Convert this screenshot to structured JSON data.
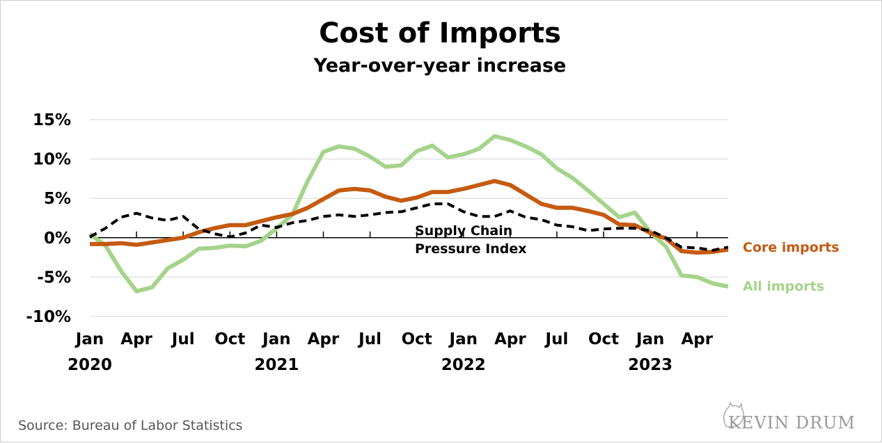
{
  "chart_data": {
    "type": "line",
    "title": "Cost of Imports",
    "subtitle": "Year-over-year increase",
    "xlabel": "",
    "ylabel": "",
    "ylim": [
      -10,
      15
    ],
    "yticks": [
      15,
      10,
      5,
      0,
      -5,
      -10
    ],
    "ytick_labels": [
      "15%",
      "10%",
      "5%",
      "0%",
      "-5%",
      "-10%"
    ],
    "x": [
      "2020-01",
      "2020-02",
      "2020-03",
      "2020-04",
      "2020-05",
      "2020-06",
      "2020-07",
      "2020-08",
      "2020-09",
      "2020-10",
      "2020-11",
      "2020-12",
      "2021-01",
      "2021-02",
      "2021-03",
      "2021-04",
      "2021-05",
      "2021-06",
      "2021-07",
      "2021-08",
      "2021-09",
      "2021-10",
      "2021-11",
      "2021-12",
      "2022-01",
      "2022-02",
      "2022-03",
      "2022-04",
      "2022-05",
      "2022-06",
      "2022-07",
      "2022-08",
      "2022-09",
      "2022-10",
      "2022-11",
      "2022-12",
      "2023-01",
      "2023-02",
      "2023-03",
      "2023-04",
      "2023-05",
      "2023-06"
    ],
    "xtick_labels": [
      "Jan",
      "Apr",
      "Jul",
      "Oct",
      "Jan",
      "Apr",
      "Jul",
      "Oct",
      "Jan",
      "Apr",
      "Jul",
      "Oct",
      "Jan",
      "Apr"
    ],
    "year_labels": [
      "2020",
      "2021",
      "2022",
      "2023"
    ],
    "grid": true,
    "series": [
      {
        "name": "All imports",
        "color": "#a6d38c",
        "style": "solid",
        "values": [
          0.5,
          -1.0,
          -4.2,
          -6.8,
          -6.3,
          -3.9,
          -2.8,
          -1.4,
          -1.3,
          -1.0,
          -1.1,
          -0.4,
          1.2,
          2.9,
          7.2,
          10.9,
          11.6,
          11.3,
          10.3,
          9.0,
          9.2,
          11.0,
          11.7,
          10.2,
          10.6,
          11.3,
          12.9,
          12.4,
          11.6,
          10.6,
          8.8,
          7.6,
          6.0,
          4.3,
          2.6,
          3.2,
          0.7,
          -1.1,
          -4.8,
          -5.0,
          -5.8,
          -6.2
        ]
      },
      {
        "name": "Core imports",
        "color": "#c55a11",
        "style": "solid",
        "values": [
          -0.8,
          -0.8,
          -0.7,
          -0.9,
          -0.6,
          -0.3,
          0.0,
          0.7,
          1.2,
          1.6,
          1.6,
          2.1,
          2.6,
          3.0,
          3.8,
          4.9,
          6.0,
          6.2,
          6.0,
          5.2,
          4.7,
          5.1,
          5.8,
          5.8,
          6.2,
          6.7,
          7.2,
          6.7,
          5.5,
          4.3,
          3.8,
          3.8,
          3.4,
          2.9,
          1.7,
          1.6,
          0.6,
          -0.1,
          -1.7,
          -1.9,
          -1.8,
          -1.5
        ]
      },
      {
        "name": "Supply Chain Pressure Index",
        "color": "#000000",
        "style": "dashed",
        "values": [
          0.1,
          1.2,
          2.6,
          3.1,
          2.5,
          2.2,
          2.7,
          1.1,
          0.5,
          0.1,
          0.6,
          1.6,
          1.3,
          1.9,
          2.2,
          2.7,
          2.9,
          2.7,
          2.9,
          3.2,
          3.3,
          3.8,
          4.3,
          4.3,
          3.3,
          2.7,
          2.7,
          3.4,
          2.6,
          2.3,
          1.6,
          1.4,
          0.9,
          1.1,
          1.2,
          1.2,
          0.9,
          0.0,
          -1.2,
          -1.3,
          -1.6,
          -1.2
        ]
      }
    ],
    "labels": {
      "scpi_line1": "Supply Chain",
      "scpi_line2": "Pressure Index",
      "core": "Core imports",
      "all": "All imports"
    },
    "source": "Source: Bureau of Labor Statistics"
  },
  "logo": "KEVIN DRUM"
}
